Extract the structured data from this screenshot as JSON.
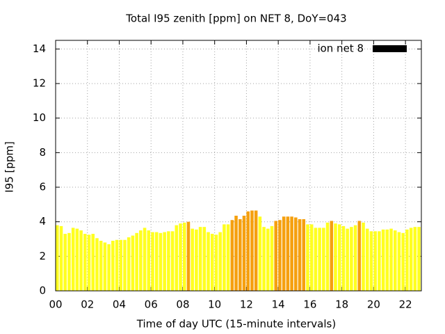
{
  "chart_data": {
    "type": "bar",
    "title": "Total I95 zenith [ppm] on NET 8, DoY=043",
    "x_label": "Time of day UTC (15-minute intervals)",
    "y_label": "I95 [ppm]",
    "x": [
      0,
      0.25,
      0.5,
      0.75,
      1,
      1.25,
      1.5,
      1.75,
      2,
      2.25,
      2.5,
      2.75,
      3,
      3.25,
      3.5,
      3.75,
      4,
      4.25,
      4.5,
      4.75,
      5,
      5.25,
      5.5,
      5.75,
      6,
      6.25,
      6.5,
      6.75,
      7,
      7.25,
      7.5,
      7.75,
      8,
      8.25,
      8.5,
      8.75,
      9,
      9.25,
      9.5,
      9.75,
      10,
      10.25,
      10.5,
      10.75,
      11,
      11.25,
      11.5,
      11.75,
      12,
      12.25,
      12.5,
      12.75,
      13,
      13.25,
      13.5,
      13.75,
      14,
      14.25,
      14.5,
      14.75,
      15,
      15.25,
      15.5,
      15.75,
      16,
      16.25,
      16.5,
      16.75,
      17,
      17.25,
      17.5,
      17.75,
      18,
      18.25,
      18.5,
      18.75,
      19,
      19.25,
      19.5,
      19.75,
      20,
      20.25,
      20.5,
      20.75,
      21,
      21.25,
      21.5,
      21.75,
      22,
      22.25,
      22.5,
      22.75
    ],
    "series": [
      {
        "name": "ion net 8",
        "color": "#000000",
        "values": [
          3.8,
          3.75,
          3.3,
          3.35,
          3.65,
          3.6,
          3.5,
          3.3,
          3.25,
          3.3,
          3.05,
          2.9,
          2.8,
          2.7,
          2.9,
          2.95,
          2.95,
          2.95,
          3.1,
          3.2,
          3.35,
          3.5,
          3.65,
          3.5,
          3.4,
          3.4,
          3.35,
          3.4,
          3.45,
          3.45,
          3.8,
          3.9,
          3.95,
          4.0,
          3.6,
          3.55,
          3.7,
          3.7,
          3.4,
          3.3,
          3.25,
          3.4,
          3.85,
          3.85,
          4.1,
          4.35,
          4.15,
          4.35,
          4.6,
          4.65,
          4.65,
          4.3,
          3.7,
          3.6,
          3.75,
          4.05,
          4.1,
          4.3,
          4.3,
          4.3,
          4.25,
          4.15,
          4.15,
          3.85,
          3.85,
          3.65,
          3.65,
          3.65,
          3.95,
          4.05,
          3.9,
          3.85,
          3.75,
          3.6,
          3.7,
          3.8,
          4.05,
          3.95,
          3.6,
          3.45,
          3.45,
          3.45,
          3.55,
          3.55,
          3.6,
          3.5,
          3.4,
          3.35,
          3.55,
          3.65,
          3.7,
          3.7
        ],
        "colors": [
          "#ffff20",
          "#ffff20",
          "#ffff20",
          "#ffff20",
          "#ffff20",
          "#ffff20",
          "#ffff20",
          "#ffff20",
          "#ffff20",
          "#ffff20",
          "#ffff20",
          "#ffff20",
          "#ffff20",
          "#ffff20",
          "#ffff20",
          "#ffff20",
          "#ffff20",
          "#ffff20",
          "#ffff20",
          "#ffff20",
          "#ffff20",
          "#ffff20",
          "#ffff20",
          "#ffff20",
          "#ffff20",
          "#ffff20",
          "#ffff20",
          "#ffff20",
          "#ffff20",
          "#ffff20",
          "#ffff20",
          "#ffff20",
          "#ffff20",
          "#f5a00f",
          "#ffff20",
          "#ffff20",
          "#ffff20",
          "#ffff20",
          "#ffff20",
          "#ffff20",
          "#ffff20",
          "#ffff20",
          "#ffff20",
          "#ffff20",
          "#f5a00f",
          "#f5a00f",
          "#f5a00f",
          "#f5a00f",
          "#f5a00f",
          "#f5a00f",
          "#f5a00f",
          "#ffff20",
          "#ffff20",
          "#ffff20",
          "#ffff20",
          "#f5a00f",
          "#f5a00f",
          "#f5a00f",
          "#f5a00f",
          "#f5a00f",
          "#f5a00f",
          "#f5a00f",
          "#f5a00f",
          "#ffff20",
          "#ffff20",
          "#ffff20",
          "#ffff20",
          "#ffff20",
          "#ffff20",
          "#f5a00f",
          "#ffff20",
          "#ffff20",
          "#ffff20",
          "#ffff20",
          "#ffff20",
          "#ffff20",
          "#f5a00f",
          "#ffff20",
          "#ffff20",
          "#ffff20",
          "#ffff20",
          "#ffff20",
          "#ffff20",
          "#ffff20",
          "#ffff20",
          "#ffff20",
          "#ffff20",
          "#ffff20",
          "#ffff20",
          "#ffff20",
          "#ffff20",
          "#ffff20"
        ]
      }
    ],
    "xlim": [
      0,
      23
    ],
    "ylim": [
      0,
      14.5
    ],
    "xticks": [
      {
        "value": 0,
        "label": "00"
      },
      {
        "value": 2,
        "label": "02"
      },
      {
        "value": 4,
        "label": "04"
      },
      {
        "value": 6,
        "label": "06"
      },
      {
        "value": 8,
        "label": "08"
      },
      {
        "value": 10,
        "label": "10"
      },
      {
        "value": 12,
        "label": "12"
      },
      {
        "value": 14,
        "label": "14"
      },
      {
        "value": 16,
        "label": "16"
      },
      {
        "value": 18,
        "label": "18"
      },
      {
        "value": 20,
        "label": "20"
      },
      {
        "value": 22,
        "label": "22"
      }
    ],
    "yticks": [
      0,
      2,
      4,
      6,
      8,
      10,
      12,
      14
    ],
    "bar_width": 0.2,
    "grid": true,
    "legend": "top-right"
  }
}
